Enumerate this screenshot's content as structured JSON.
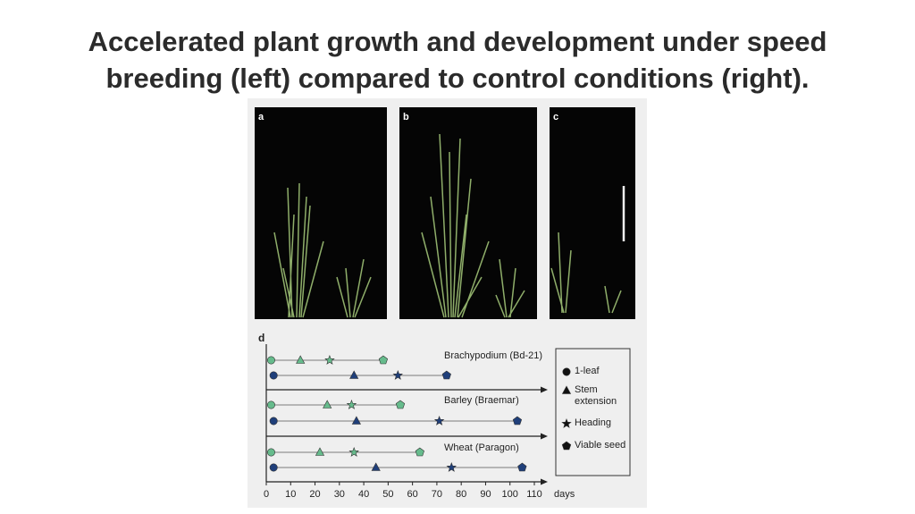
{
  "title": "Accelerated plant growth and development under speed breeding (left) compared to control conditions (right).",
  "figure": {
    "panels": [
      "a",
      "b",
      "c"
    ],
    "timeline": {
      "label": "d",
      "xlim": [
        0,
        110
      ],
      "xticks": [
        0,
        10,
        20,
        30,
        40,
        50,
        60,
        70,
        80,
        90,
        100,
        110
      ],
      "x_unit": "days",
      "stages": [
        "1-leaf",
        "Stem extension",
        "Heading",
        "Viable seed"
      ],
      "colors": {
        "speed": "#66bb8c",
        "control": "#1f3f7a"
      },
      "groups": [
        {
          "name": "Brachypodium (Bd-21)",
          "speed": [
            2,
            14,
            26,
            48
          ],
          "control": [
            3,
            36,
            54,
            74
          ]
        },
        {
          "name": "Barley (Braemar)",
          "speed": [
            2,
            25,
            35,
            55
          ],
          "control": [
            3,
            37,
            71,
            103
          ]
        },
        {
          "name": "Wheat (Paragon)",
          "speed": [
            2,
            22,
            36,
            63
          ],
          "control": [
            3,
            45,
            76,
            105
          ]
        }
      ]
    }
  }
}
